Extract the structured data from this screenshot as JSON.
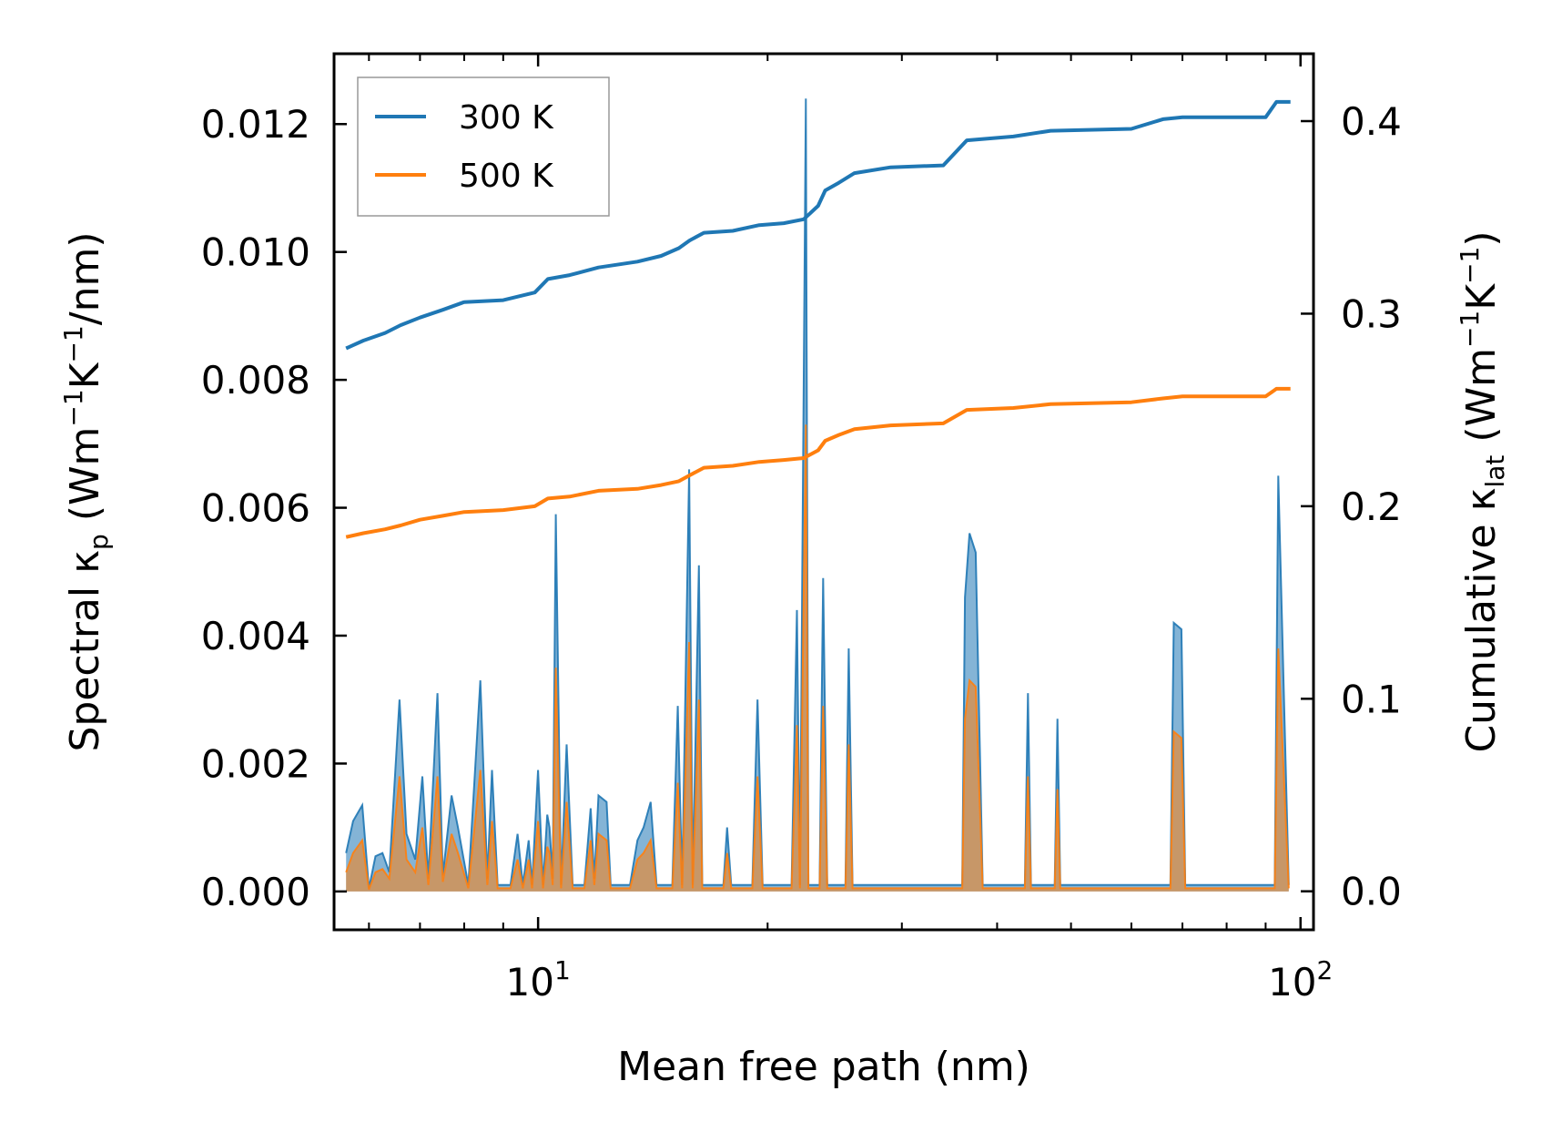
{
  "chart_data": {
    "type": "line",
    "xlabel": "Mean free path (nm)",
    "xscale": "log",
    "xlim": [
      5.4,
      104
    ],
    "x_ticks": [
      {
        "value": 10,
        "base": "10",
        "exp": "1"
      },
      {
        "value": 100,
        "base": "10",
        "exp": "2"
      }
    ],
    "ylabel_left": {
      "main": "Spectral κ",
      "sub": "p",
      "unit_open": " (Wm",
      "sup1": "−1",
      "mid": "K",
      "sup2": "−1",
      "unit_close": "/nm)"
    },
    "ylabel_right": {
      "main": "Cumulative κ",
      "sub": "lat",
      "unit_open": " (Wm",
      "sup1": "−1",
      "mid": "K",
      "sup2": "−1",
      "unit_close": ")"
    },
    "ylim_left": [
      -0.0006,
      0.0131
    ],
    "ylim_right": [
      -0.02,
      0.435
    ],
    "y_ticks_left": [
      {
        "value": 0,
        "label": "0.000"
      },
      {
        "value": 0.002,
        "label": "0.002"
      },
      {
        "value": 0.004,
        "label": "0.004"
      },
      {
        "value": 0.006,
        "label": "0.006"
      },
      {
        "value": 0.008,
        "label": "0.008"
      },
      {
        "value": 0.01,
        "label": "0.010"
      },
      {
        "value": 0.012,
        "label": "0.012"
      }
    ],
    "y_ticks_right": [
      {
        "value": 0,
        "label": "0.0"
      },
      {
        "value": 0.1,
        "label": "0.1"
      },
      {
        "value": 0.2,
        "label": "0.2"
      },
      {
        "value": 0.3,
        "label": "0.3"
      },
      {
        "value": 0.4,
        "label": "0.4"
      }
    ],
    "legend": {
      "position": "top-left"
    },
    "series": [
      {
        "name": "300 K",
        "color": "#1f77b4",
        "cumulative": [
          [
            5.6,
            0.282
          ],
          [
            5.9,
            0.286
          ],
          [
            6.3,
            0.29
          ],
          [
            6.6,
            0.294
          ],
          [
            7.0,
            0.298
          ],
          [
            7.5,
            0.302
          ],
          [
            8.0,
            0.306
          ],
          [
            9.0,
            0.307
          ],
          [
            9.9,
            0.311
          ],
          [
            10.3,
            0.318
          ],
          [
            11.0,
            0.32
          ],
          [
            12.0,
            0.324
          ],
          [
            13.5,
            0.327
          ],
          [
            14.5,
            0.33
          ],
          [
            15.3,
            0.334
          ],
          [
            15.8,
            0.338
          ],
          [
            16.5,
            0.342
          ],
          [
            18.0,
            0.343
          ],
          [
            19.5,
            0.346
          ],
          [
            21.0,
            0.347
          ],
          [
            22.3,
            0.349
          ],
          [
            23.3,
            0.356
          ],
          [
            23.8,
            0.364
          ],
          [
            24.8,
            0.368
          ],
          [
            26.0,
            0.373
          ],
          [
            29.0,
            0.376
          ],
          [
            34.0,
            0.377
          ],
          [
            36.5,
            0.39
          ],
          [
            42.0,
            0.392
          ],
          [
            47.0,
            0.395
          ],
          [
            60.0,
            0.396
          ],
          [
            66.0,
            0.401
          ],
          [
            70.0,
            0.402
          ],
          [
            90.0,
            0.402
          ],
          [
            93.0,
            0.41
          ],
          [
            97.0,
            0.41
          ]
        ],
        "spectral": [
          [
            5.6,
            0.0006
          ],
          [
            5.72,
            0.0011
          ],
          [
            5.88,
            0.00135
          ],
          [
            6.0,
            5e-05
          ],
          [
            6.12,
            0.00055
          ],
          [
            6.25,
            0.0006
          ],
          [
            6.38,
            0.0003
          ],
          [
            6.58,
            0.003
          ],
          [
            6.72,
            0.0009
          ],
          [
            6.9,
            0.0005
          ],
          [
            7.05,
            0.0018
          ],
          [
            7.18,
            0.0002
          ],
          [
            7.38,
            0.0031
          ],
          [
            7.5,
            0.00025
          ],
          [
            7.7,
            0.0015
          ],
          [
            7.85,
            0.001
          ],
          [
            8.1,
            0.0001
          ],
          [
            8.4,
            0.0033
          ],
          [
            8.58,
            0.0002
          ],
          [
            8.7,
            0.0019
          ],
          [
            8.85,
            0.0001
          ],
          [
            9.2,
            0.0001
          ],
          [
            9.4,
            0.0009
          ],
          [
            9.55,
            0.0001
          ],
          [
            9.72,
            0.0008
          ],
          [
            9.82,
            0.0001
          ],
          [
            10.0,
            0.0019
          ],
          [
            10.15,
            0.0001
          ],
          [
            10.28,
            0.0012
          ],
          [
            10.35,
            0.001
          ],
          [
            10.45,
            0.0002
          ],
          [
            10.55,
            0.0059
          ],
          [
            10.72,
            0.0001
          ],
          [
            10.9,
            0.0023
          ],
          [
            11.1,
            0.0001
          ],
          [
            11.5,
            0.0001
          ],
          [
            11.72,
            0.0013
          ],
          [
            11.85,
            0.0002
          ],
          [
            12.0,
            0.0015
          ],
          [
            12.3,
            0.0014
          ],
          [
            12.45,
            0.0001
          ],
          [
            13.2,
            0.0001
          ],
          [
            13.5,
            0.0008
          ],
          [
            13.75,
            0.001
          ],
          [
            14.05,
            0.0014
          ],
          [
            14.3,
            0.0001
          ],
          [
            15.0,
            0.0001
          ],
          [
            15.25,
            0.0029
          ],
          [
            15.45,
            0.0001
          ],
          [
            15.78,
            0.0066
          ],
          [
            15.95,
            0.0001
          ],
          [
            16.25,
            0.0051
          ],
          [
            16.42,
            0.0001
          ],
          [
            17.5,
            0.0001
          ],
          [
            17.7,
            0.001
          ],
          [
            17.92,
            0.0001
          ],
          [
            19.1,
            0.0001
          ],
          [
            19.4,
            0.003
          ],
          [
            19.7,
            0.0001
          ],
          [
            21.5,
            0.0001
          ],
          [
            21.85,
            0.0044
          ],
          [
            22.05,
            0.0001
          ],
          [
            22.45,
            0.0124
          ],
          [
            22.62,
            0.0001
          ],
          [
            23.4,
            0.0001
          ],
          [
            23.65,
            0.0049
          ],
          [
            23.95,
            0.0001
          ],
          [
            25.3,
            0.0001
          ],
          [
            25.55,
            0.0038
          ],
          [
            25.85,
            0.0001
          ],
          [
            30.0,
            0.0001
          ],
          [
            36.0,
            0.0001
          ],
          [
            36.3,
            0.0046
          ],
          [
            36.8,
            0.0056
          ],
          [
            37.5,
            0.0053
          ],
          [
            38.3,
            0.0001
          ],
          [
            43.5,
            0.0001
          ],
          [
            43.9,
            0.0031
          ],
          [
            44.3,
            0.0001
          ],
          [
            47.6,
            0.0001
          ],
          [
            48.0,
            0.0027
          ],
          [
            48.4,
            0.0001
          ],
          [
            67.5,
            0.0001
          ],
          [
            68.2,
            0.0042
          ],
          [
            69.8,
            0.0041
          ],
          [
            70.6,
            0.0001
          ],
          [
            92.5,
            0.0001
          ],
          [
            93.5,
            0.0065
          ],
          [
            96.5,
            0.0001
          ]
        ]
      },
      {
        "name": "500 K",
        "color": "#ff7f0e",
        "cumulative": [
          [
            5.6,
            0.184
          ],
          [
            5.9,
            0.186
          ],
          [
            6.3,
            0.188
          ],
          [
            6.6,
            0.19
          ],
          [
            7.0,
            0.193
          ],
          [
            7.5,
            0.195
          ],
          [
            8.0,
            0.197
          ],
          [
            9.0,
            0.198
          ],
          [
            9.9,
            0.2
          ],
          [
            10.3,
            0.204
          ],
          [
            11.0,
            0.205
          ],
          [
            12.0,
            0.208
          ],
          [
            13.5,
            0.209
          ],
          [
            14.5,
            0.211
          ],
          [
            15.3,
            0.213
          ],
          [
            15.8,
            0.216
          ],
          [
            16.5,
            0.22
          ],
          [
            18.0,
            0.221
          ],
          [
            19.5,
            0.223
          ],
          [
            21.0,
            0.224
          ],
          [
            22.3,
            0.225
          ],
          [
            23.3,
            0.229
          ],
          [
            23.8,
            0.234
          ],
          [
            24.8,
            0.237
          ],
          [
            26.0,
            0.24
          ],
          [
            29.0,
            0.242
          ],
          [
            34.0,
            0.243
          ],
          [
            36.5,
            0.25
          ],
          [
            42.0,
            0.251
          ],
          [
            47.0,
            0.253
          ],
          [
            60.0,
            0.254
          ],
          [
            66.0,
            0.256
          ],
          [
            70.0,
            0.257
          ],
          [
            90.0,
            0.257
          ],
          [
            93.0,
            0.261
          ],
          [
            97.0,
            0.261
          ]
        ],
        "spectral": [
          [
            5.6,
            0.0003
          ],
          [
            5.72,
            0.0006
          ],
          [
            5.88,
            0.0008
          ],
          [
            6.0,
            3e-05
          ],
          [
            6.12,
            0.0003
          ],
          [
            6.25,
            0.00035
          ],
          [
            6.38,
            0.0002
          ],
          [
            6.58,
            0.0018
          ],
          [
            6.72,
            0.0005
          ],
          [
            6.9,
            0.0003
          ],
          [
            7.05,
            0.001
          ],
          [
            7.18,
            0.0001
          ],
          [
            7.38,
            0.0018
          ],
          [
            7.5,
            0.00015
          ],
          [
            7.7,
            0.0009
          ],
          [
            7.85,
            0.0006
          ],
          [
            8.1,
            5e-05
          ],
          [
            8.4,
            0.0019
          ],
          [
            8.58,
            0.0001
          ],
          [
            8.7,
            0.0011
          ],
          [
            8.85,
            5e-05
          ],
          [
            9.2,
            5e-05
          ],
          [
            9.4,
            0.0005
          ],
          [
            9.55,
            5e-05
          ],
          [
            9.72,
            0.0005
          ],
          [
            9.82,
            5e-05
          ],
          [
            10.0,
            0.0011
          ],
          [
            10.15,
            5e-05
          ],
          [
            10.28,
            0.0007
          ],
          [
            10.35,
            0.0006
          ],
          [
            10.45,
            0.0001
          ],
          [
            10.55,
            0.0035
          ],
          [
            10.72,
            5e-05
          ],
          [
            10.9,
            0.0014
          ],
          [
            11.1,
            5e-05
          ],
          [
            11.5,
            5e-05
          ],
          [
            11.72,
            0.0008
          ],
          [
            11.85,
            0.0001
          ],
          [
            12.0,
            0.0009
          ],
          [
            12.3,
            0.0008
          ],
          [
            12.45,
            5e-05
          ],
          [
            13.2,
            5e-05
          ],
          [
            13.5,
            0.0005
          ],
          [
            13.75,
            0.0006
          ],
          [
            14.05,
            0.0008
          ],
          [
            14.3,
            5e-05
          ],
          [
            15.0,
            5e-05
          ],
          [
            15.25,
            0.0017
          ],
          [
            15.45,
            5e-05
          ],
          [
            15.78,
            0.0039
          ],
          [
            15.95,
            5e-05
          ],
          [
            16.25,
            0.003
          ],
          [
            16.42,
            5e-05
          ],
          [
            17.5,
            5e-05
          ],
          [
            17.7,
            0.0006
          ],
          [
            17.92,
            5e-05
          ],
          [
            19.1,
            5e-05
          ],
          [
            19.4,
            0.0018
          ],
          [
            19.7,
            5e-05
          ],
          [
            21.5,
            5e-05
          ],
          [
            21.85,
            0.0026
          ],
          [
            22.05,
            5e-05
          ],
          [
            22.45,
            0.0073
          ],
          [
            22.62,
            5e-05
          ],
          [
            23.4,
            5e-05
          ],
          [
            23.65,
            0.0029
          ],
          [
            23.95,
            5e-05
          ],
          [
            25.3,
            5e-05
          ],
          [
            25.55,
            0.0023
          ],
          [
            25.85,
            5e-05
          ],
          [
            30.0,
            5e-05
          ],
          [
            36.0,
            5e-05
          ],
          [
            36.3,
            0.0027
          ],
          [
            36.8,
            0.0033
          ],
          [
            37.5,
            0.0032
          ],
          [
            38.3,
            5e-05
          ],
          [
            43.5,
            5e-05
          ],
          [
            43.9,
            0.0018
          ],
          [
            44.3,
            5e-05
          ],
          [
            47.6,
            5e-05
          ],
          [
            48.0,
            0.0016
          ],
          [
            48.4,
            5e-05
          ],
          [
            67.5,
            5e-05
          ],
          [
            68.2,
            0.0025
          ],
          [
            69.8,
            0.0024
          ],
          [
            70.6,
            5e-05
          ],
          [
            92.5,
            5e-05
          ],
          [
            93.5,
            0.0038
          ],
          [
            96.5,
            5e-05
          ]
        ]
      }
    ]
  }
}
